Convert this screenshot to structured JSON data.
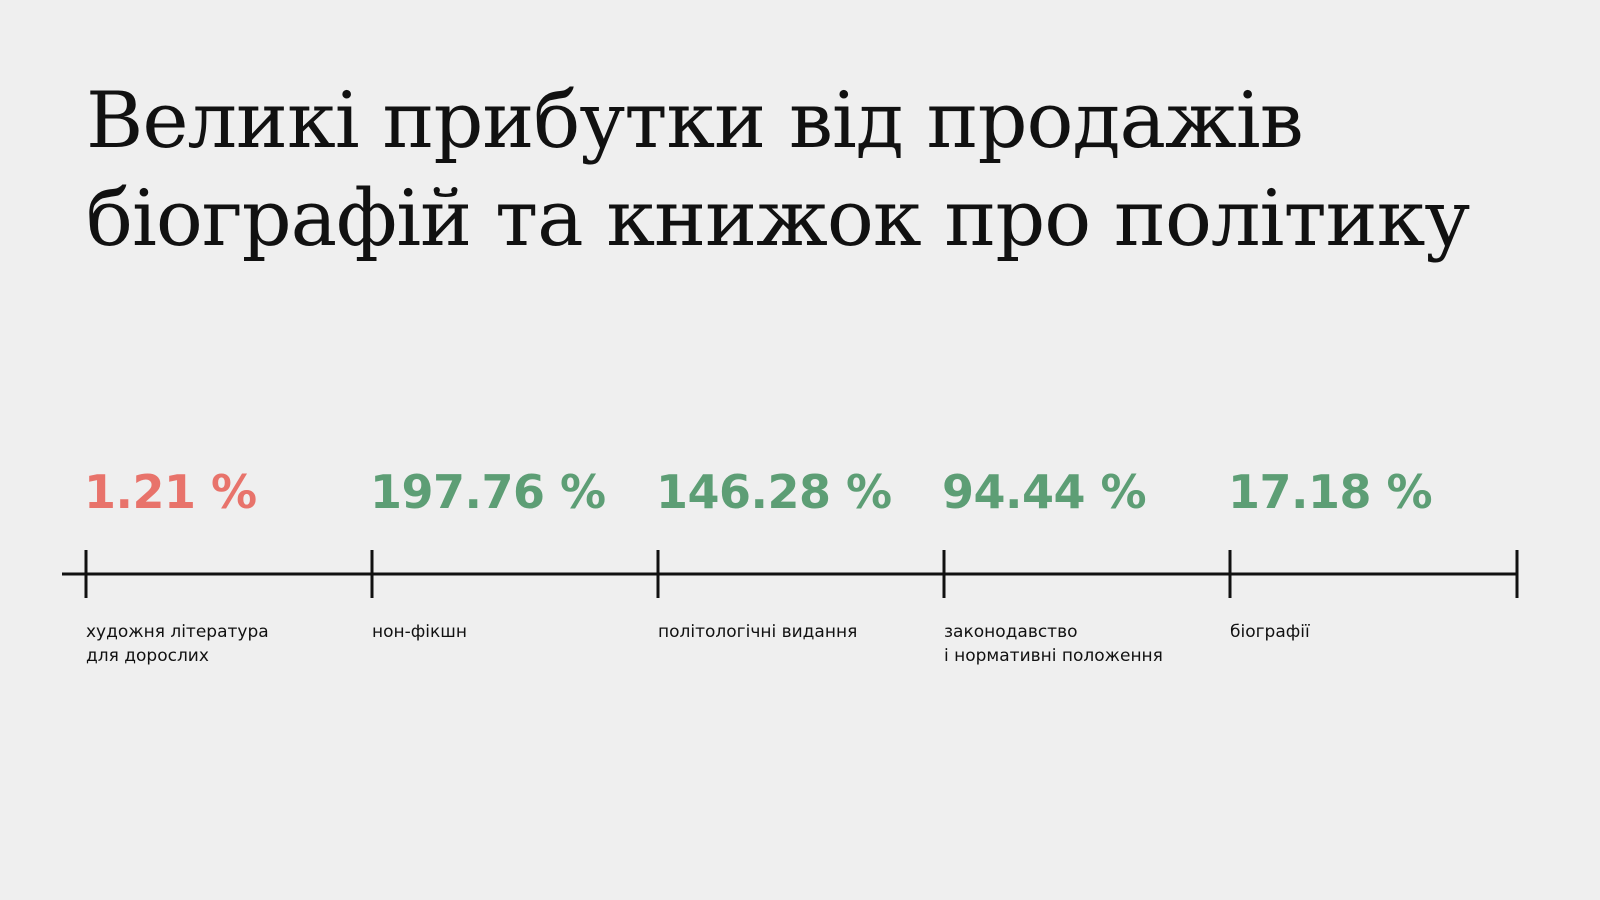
{
  "title": {
    "line1": "Великі прибутки від продажів",
    "line2": "біографій та книжок про політику"
  },
  "colors": {
    "negative": "#e8736b",
    "positive": "#5d9e75",
    "text": "#111111",
    "background": "#efefef"
  },
  "chart_data": {
    "type": "table",
    "categories": [
      [
        "художня література",
        "для дорослих"
      ],
      [
        "нон-фікшн"
      ],
      [
        "політологічні видання"
      ],
      [
        "законодавство",
        "і нормативні положення"
      ],
      [
        "біографії"
      ]
    ],
    "values": [
      1.21,
      197.76,
      146.28,
      94.44,
      17.18
    ],
    "value_labels": [
      "1.21 %",
      "197.76 %",
      "146.28 %",
      "94.44 %",
      "17.18 %"
    ],
    "value_colors": [
      "negative",
      "positive",
      "positive",
      "positive",
      "positive"
    ]
  }
}
